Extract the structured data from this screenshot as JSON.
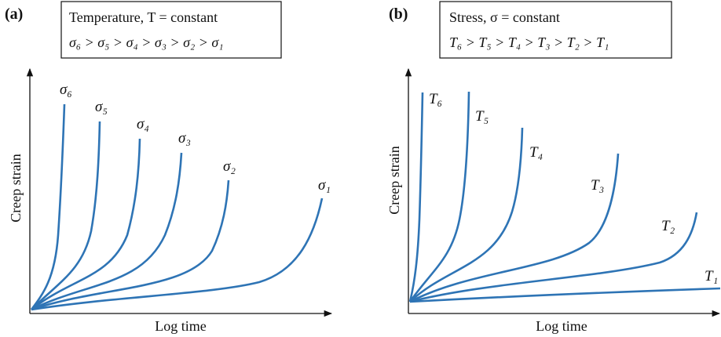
{
  "panels": [
    {
      "label": "(a)",
      "box": {
        "line1": "Temperature, T = constant",
        "line2": "σ₆ > σ₅ > σ₄ > σ₃ > σ₂ > σ₁"
      },
      "y_label": "Creep strain",
      "x_label": "Log time",
      "curves": [
        "σ₆",
        "σ₅",
        "σ₄",
        "σ₃",
        "σ₂",
        "σ₁"
      ]
    },
    {
      "label": "(b)",
      "box": {
        "line1": "Stress, σ = constant",
        "line2": "T₆ > T₅ > T₄ > T₃ > T₂ > T₁"
      },
      "y_label": "Creep strain",
      "x_label": "Log time",
      "curves": [
        "T₆",
        "T₅",
        "T₄",
        "T₃",
        "T₂",
        "T₁"
      ]
    }
  ]
}
